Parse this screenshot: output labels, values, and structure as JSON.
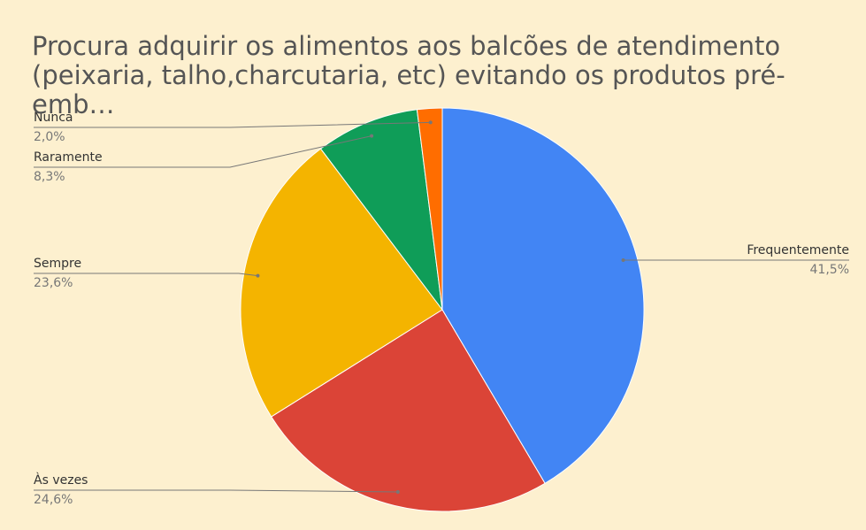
{
  "chart_data": {
    "type": "pie",
    "title": "Procura adquirir os alimentos aos balcões de atendimento (peixaria, talho,charcutaria, etc) evitando os produtos pré-emb…",
    "categories": [
      "Frequentemente",
      "Às vezes",
      "Sempre",
      "Raramente",
      "Nunca"
    ],
    "values": [
      41.5,
      24.6,
      23.6,
      8.3,
      2.0
    ],
    "value_labels": [
      "41,5%",
      "24,6%",
      "23,6%",
      "8,3%",
      "2,0%"
    ],
    "colors": [
      "#4285f4",
      "#db4437",
      "#f4b400",
      "#0f9d58",
      "#ff6d00"
    ]
  }
}
